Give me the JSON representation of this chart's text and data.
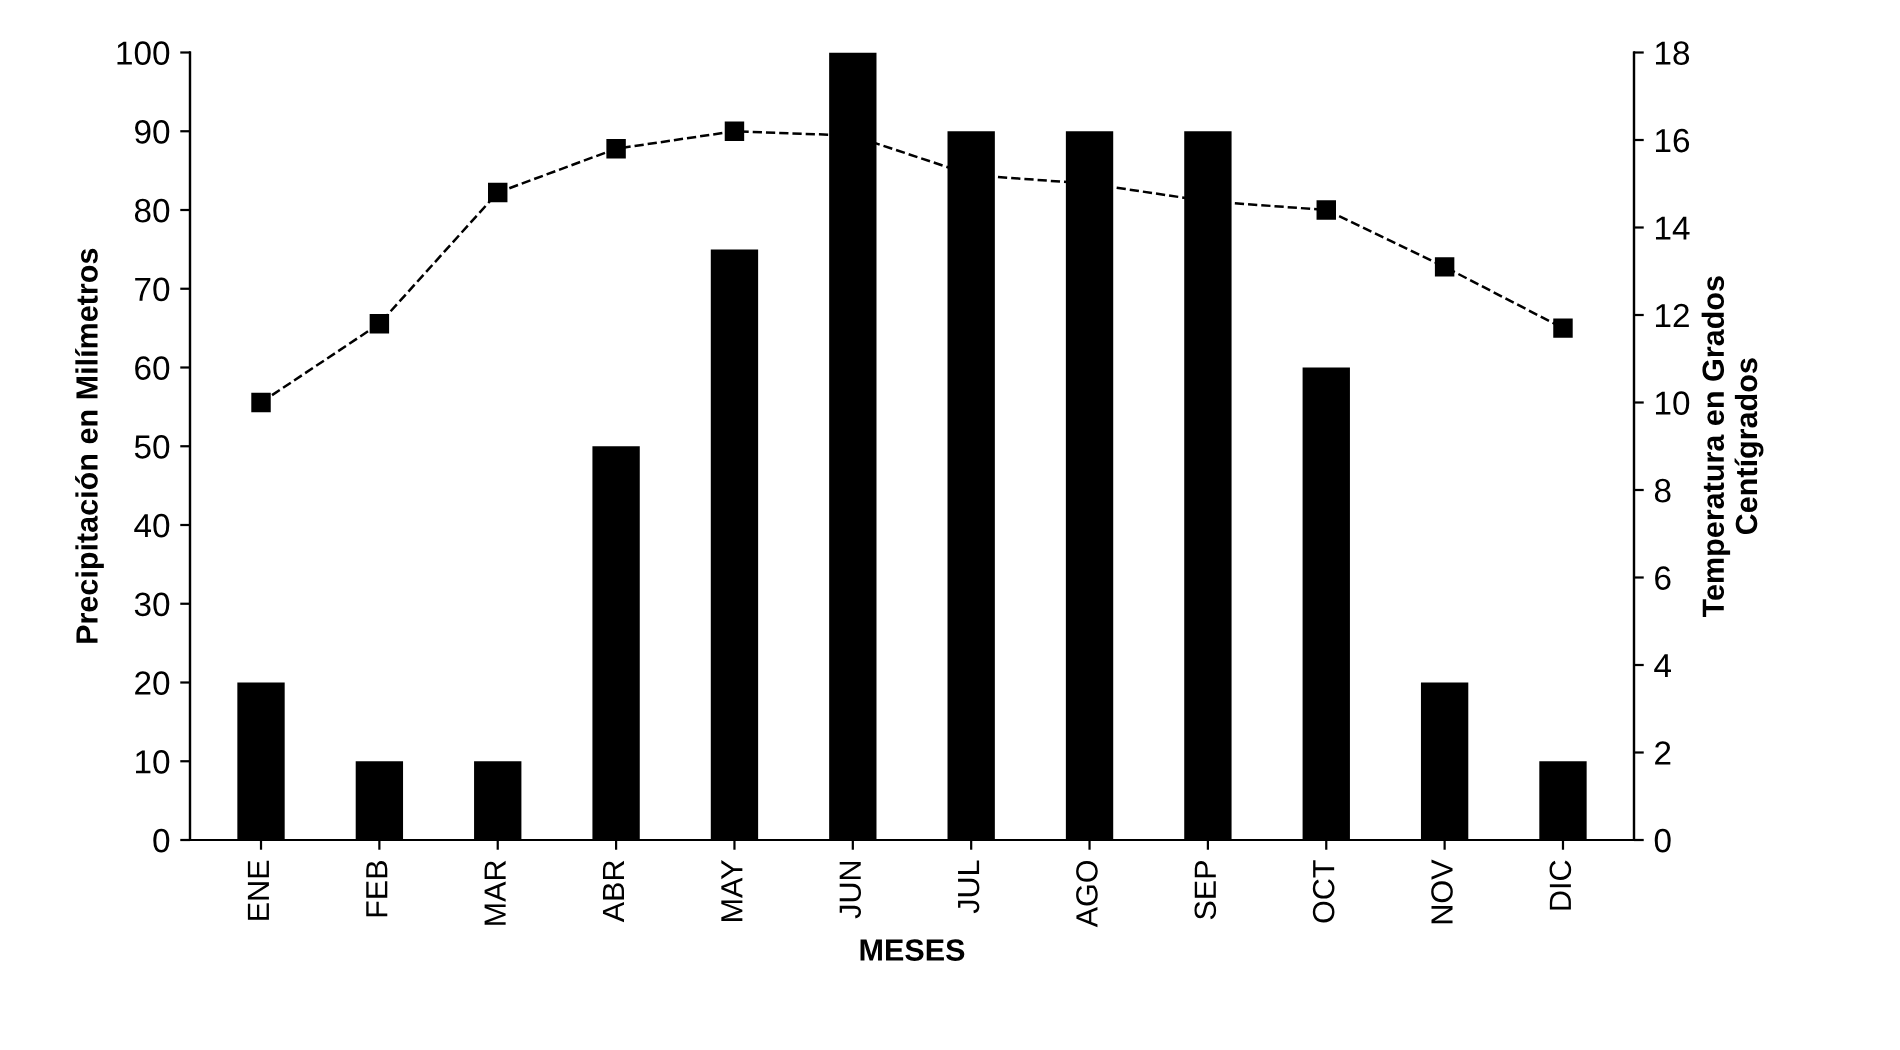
{
  "chart_data": {
    "type": "bar",
    "xlabel": "MESES",
    "ylabel": "Precipitación en Milímetros",
    "y2label": "Temperatura en Grados\nCentígrados",
    "categories": [
      "ENE",
      "FEB",
      "MAR",
      "ABR",
      "MAY",
      "JUN",
      "JUL",
      "AGO",
      "SEP",
      "OCT",
      "NOV",
      "DIC"
    ],
    "series": [
      {
        "color": "#000000",
        "values": [
          20,
          10,
          10,
          50,
          75,
          100,
          90,
          90,
          90,
          60,
          20,
          10
        ]
      },
      {
        "type": "line",
        "axis": "y2",
        "color": "#000000",
        "marker": "square",
        "line_style": "dashed",
        "values": [
          10.0,
          11.8,
          14.8,
          15.8,
          16.2,
          16.1,
          15.2,
          15.0,
          14.6,
          14.4,
          13.1,
          11.7
        ]
      }
    ],
    "ylim": [
      0,
      100
    ],
    "yticks": [
      0,
      10,
      20,
      30,
      40,
      50,
      60,
      70,
      80,
      90,
      100
    ],
    "y2lim": [
      0,
      18
    ],
    "y2ticks": [
      0,
      2,
      4,
      6,
      8,
      10,
      12,
      14,
      16,
      18
    ],
    "grid": false
  }
}
